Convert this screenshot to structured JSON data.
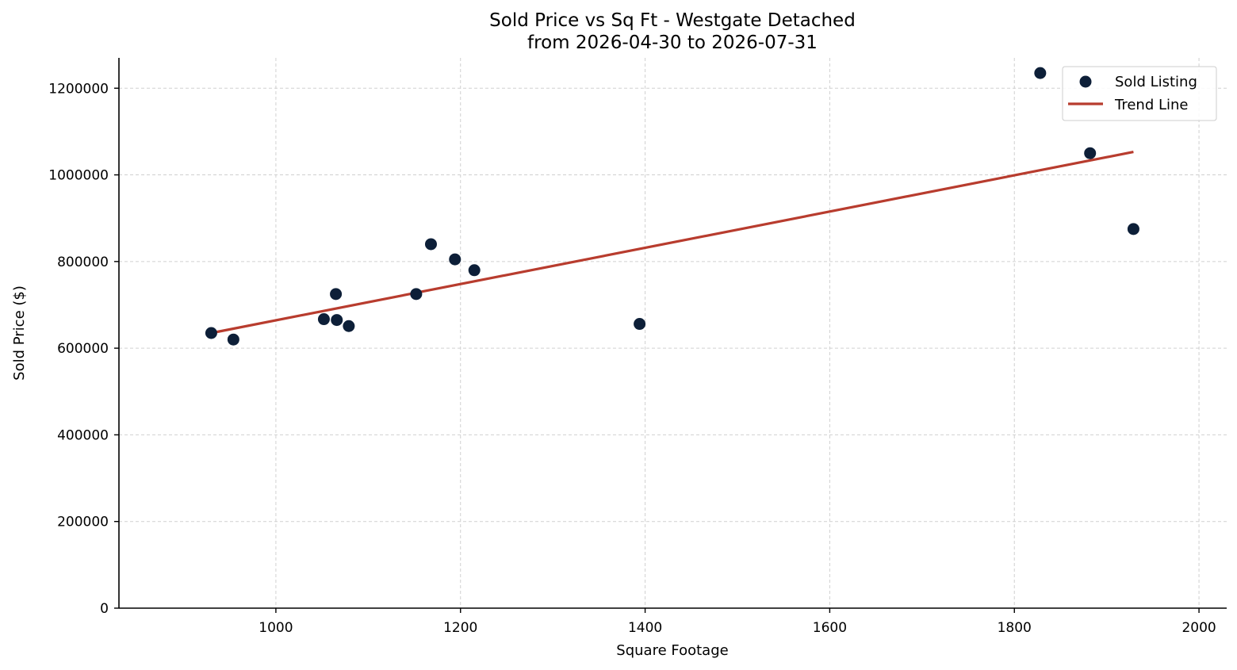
{
  "chart_data": {
    "type": "scatter",
    "title": "Sold Price vs Sq Ft - Westgate Detached",
    "subtitle": "from 2026-04-30 to 2026-07-31",
    "xlabel": "Square Footage",
    "ylabel": "Sold Price ($)",
    "xlim": [
      830,
      2030
    ],
    "ylim": [
      0,
      1270000
    ],
    "xticks": [
      1000,
      1200,
      1400,
      1600,
      1800,
      2000
    ],
    "yticks": [
      0,
      200000,
      400000,
      600000,
      800000,
      1000000,
      1200000
    ],
    "grid": true,
    "legend_position": "top-right",
    "series": [
      {
        "name": "Sold Listing",
        "kind": "scatter",
        "color": "#0d1f38",
        "points": [
          {
            "x": 930,
            "y": 635000
          },
          {
            "x": 954,
            "y": 620000
          },
          {
            "x": 1052,
            "y": 667000
          },
          {
            "x": 1065,
            "y": 725000
          },
          {
            "x": 1066,
            "y": 665000
          },
          {
            "x": 1079,
            "y": 651000
          },
          {
            "x": 1152,
            "y": 725000
          },
          {
            "x": 1168,
            "y": 840000
          },
          {
            "x": 1194,
            "y": 805000
          },
          {
            "x": 1215,
            "y": 780000
          },
          {
            "x": 1394,
            "y": 656000
          },
          {
            "x": 1828,
            "y": 1235000
          },
          {
            "x": 1882,
            "y": 1050000
          },
          {
            "x": 1929,
            "y": 875000
          }
        ]
      },
      {
        "name": "Trend Line",
        "kind": "line",
        "color": "#b83c2e",
        "points": [
          {
            "x": 930,
            "y": 635000
          },
          {
            "x": 1929,
            "y": 1053000
          }
        ]
      }
    ]
  }
}
